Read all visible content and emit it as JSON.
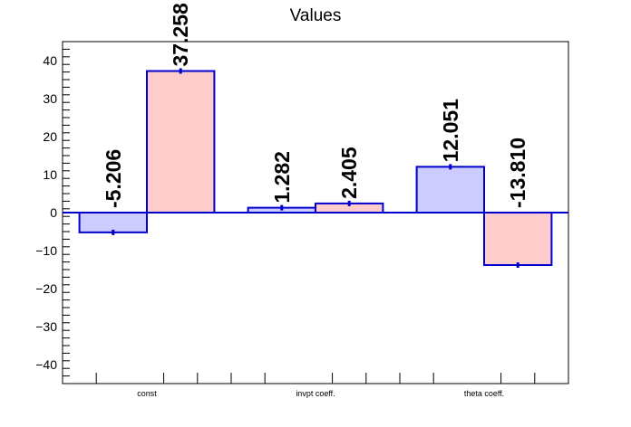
{
  "chart_data": {
    "type": "bar",
    "title": "Values",
    "categories": [
      "const",
      "invpt coeff.",
      "theta coeff."
    ],
    "series": [
      {
        "values": [
          -5.206,
          1.282,
          12.051
        ],
        "color": "#ccccff",
        "edge": "#0000cc"
      },
      {
        "values": [
          37.258,
          2.405,
          -13.81
        ],
        "color": "#ffcccc",
        "edge": "#0000cc"
      }
    ],
    "data_labels": [
      [
        "-5.206",
        "1.282",
        "12.051"
      ],
      [
        "37.258",
        "2.405",
        "-13.810"
      ]
    ],
    "ylim": [
      -45,
      45
    ],
    "yticks": [
      -40,
      -30,
      -20,
      -10,
      0,
      10,
      20,
      30,
      40
    ],
    "ytick_labels": [
      "−40",
      "−30",
      "−20",
      "−10",
      "0",
      "10",
      "20",
      "30",
      "40"
    ],
    "xlabel": "",
    "ylabel": "",
    "grid": false,
    "zero_line_color": "#0000cc",
    "legend": "none"
  }
}
